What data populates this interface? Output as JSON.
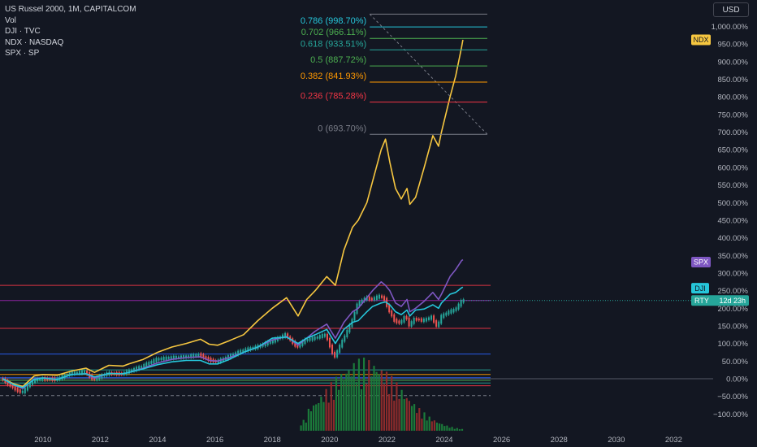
{
  "legend": {
    "main": "US Russel 2000, 1M, CAPITALCOM",
    "vol": "Vol",
    "dji": "DJI · TVC",
    "ndx": "NDX · NASDAQ",
    "spx": "SPX · SP"
  },
  "currency_button": "USD",
  "colors": {
    "background": "#131722",
    "ndx": "#f7c740",
    "spx": "#7e57c2",
    "dji": "#26c6da",
    "candle_up": "#26a69a",
    "candle_down": "#ef5350",
    "vol_up": "#1b7a3a",
    "vol_down": "#8b2b2b"
  },
  "fib_levels": [
    {
      "label": "0.786 (998.70%)",
      "color": "#26c6da"
    },
    {
      "label": "0.702 (966.11%)",
      "color": "#4caf50"
    },
    {
      "label": "0.618 (933.51%)",
      "color": "#26a69a"
    },
    {
      "label": "0.5 (887.72%)",
      "color": "#4caf50"
    },
    {
      "label": "0.382 (841.93%)",
      "color": "#ff9800"
    },
    {
      "label": "0.236 (785.28%)",
      "color": "#f23645"
    },
    {
      "label": "0 (693.70%)",
      "color": "#787b86"
    }
  ],
  "price_tags": {
    "ndx": "NDX",
    "spx": "SPX",
    "dji": "DJI",
    "rty": "RTY",
    "rty_countdown": "12d 23h"
  },
  "chart_data": {
    "type": "line",
    "scale": "percent",
    "x_ticks": [
      "2010",
      "2012",
      "2014",
      "2016",
      "2018",
      "2020",
      "2022",
      "2024",
      "2026",
      "2028",
      "2030",
      "2032"
    ],
    "y_ticks": [
      "1,000.00%",
      "950.00%",
      "900.00%",
      "850.00%",
      "800.00%",
      "750.00%",
      "700.00%",
      "650.00%",
      "600.00%",
      "550.00%",
      "500.00%",
      "450.00%",
      "400.00%",
      "350.00%",
      "300.00%",
      "250.00%",
      "200.00%",
      "150.00%",
      "100.00%",
      "50.00%",
      "0.00%",
      "−50.00%",
      "−100.00%"
    ],
    "ylim": [
      -115,
      1050
    ],
    "series": [
      {
        "name": "NDX",
        "points": [
          [
            2008.6,
            0
          ],
          [
            2009.0,
            -15
          ],
          [
            2009.3,
            -22
          ],
          [
            2009.7,
            8
          ],
          [
            2010.0,
            12
          ],
          [
            2010.5,
            10
          ],
          [
            2011.0,
            22
          ],
          [
            2011.5,
            30
          ],
          [
            2011.8,
            18
          ],
          [
            2012.3,
            38
          ],
          [
            2012.8,
            36
          ],
          [
            2013.0,
            42
          ],
          [
            2013.5,
            55
          ],
          [
            2014.0,
            75
          ],
          [
            2014.5,
            90
          ],
          [
            2015.0,
            100
          ],
          [
            2015.5,
            112
          ],
          [
            2015.8,
            98
          ],
          [
            2016.1,
            95
          ],
          [
            2016.5,
            108
          ],
          [
            2017.0,
            125
          ],
          [
            2017.5,
            165
          ],
          [
            2018.0,
            200
          ],
          [
            2018.5,
            230
          ],
          [
            2018.9,
            178
          ],
          [
            2019.2,
            225
          ],
          [
            2019.5,
            250
          ],
          [
            2019.9,
            290
          ],
          [
            2020.2,
            265
          ],
          [
            2020.5,
            365
          ],
          [
            2020.8,
            430
          ],
          [
            2021.0,
            450
          ],
          [
            2021.3,
            500
          ],
          [
            2021.5,
            560
          ],
          [
            2021.8,
            650
          ],
          [
            2021.95,
            680
          ],
          [
            2022.1,
            615
          ],
          [
            2022.3,
            540
          ],
          [
            2022.5,
            510
          ],
          [
            2022.7,
            540
          ],
          [
            2022.8,
            495
          ],
          [
            2023.0,
            515
          ],
          [
            2023.3,
            600
          ],
          [
            2023.6,
            690
          ],
          [
            2023.8,
            660
          ],
          [
            2023.9,
            700
          ],
          [
            2024.2,
            800
          ],
          [
            2024.4,
            860
          ],
          [
            2024.6,
            940
          ],
          [
            2024.65,
            962
          ]
        ]
      },
      {
        "name": "SPX",
        "points": [
          [
            2008.6,
            0
          ],
          [
            2009.0,
            -18
          ],
          [
            2009.3,
            -28
          ],
          [
            2009.7,
            0
          ],
          [
            2010.0,
            2
          ],
          [
            2010.5,
            -2
          ],
          [
            2011.0,
            12
          ],
          [
            2011.5,
            14
          ],
          [
            2011.8,
            2
          ],
          [
            2012.3,
            15
          ],
          [
            2012.8,
            14
          ],
          [
            2013.0,
            18
          ],
          [
            2013.5,
            30
          ],
          [
            2014.0,
            45
          ],
          [
            2014.5,
            55
          ],
          [
            2015.0,
            60
          ],
          [
            2015.5,
            62
          ],
          [
            2015.8,
            52
          ],
          [
            2016.1,
            50
          ],
          [
            2016.5,
            60
          ],
          [
            2017.0,
            75
          ],
          [
            2017.5,
            90
          ],
          [
            2018.0,
            110
          ],
          [
            2018.5,
            120
          ],
          [
            2018.9,
            95
          ],
          [
            2019.2,
            115
          ],
          [
            2019.5,
            135
          ],
          [
            2019.9,
            155
          ],
          [
            2020.2,
            115
          ],
          [
            2020.5,
            160
          ],
          [
            2020.8,
            190
          ],
          [
            2021.0,
            200
          ],
          [
            2021.3,
            230
          ],
          [
            2021.5,
            250
          ],
          [
            2021.8,
            275
          ],
          [
            2021.95,
            265
          ],
          [
            2022.1,
            250
          ],
          [
            2022.3,
            215
          ],
          [
            2022.5,
            205
          ],
          [
            2022.7,
            225
          ],
          [
            2022.8,
            190
          ],
          [
            2023.0,
            200
          ],
          [
            2023.3,
            220
          ],
          [
            2023.6,
            245
          ],
          [
            2023.8,
            225
          ],
          [
            2023.9,
            240
          ],
          [
            2024.2,
            290
          ],
          [
            2024.4,
            310
          ],
          [
            2024.6,
            335
          ],
          [
            2024.65,
            338
          ]
        ]
      },
      {
        "name": "DJI",
        "points": [
          [
            2008.6,
            0
          ],
          [
            2009.0,
            -18
          ],
          [
            2009.3,
            -25
          ],
          [
            2009.7,
            -2
          ],
          [
            2010.0,
            2
          ],
          [
            2010.5,
            -2
          ],
          [
            2011.0,
            12
          ],
          [
            2011.5,
            14
          ],
          [
            2011.8,
            5
          ],
          [
            2012.3,
            15
          ],
          [
            2012.8,
            14
          ],
          [
            2013.0,
            18
          ],
          [
            2013.5,
            28
          ],
          [
            2014.0,
            40
          ],
          [
            2014.5,
            48
          ],
          [
            2015.0,
            52
          ],
          [
            2015.5,
            52
          ],
          [
            2015.8,
            42
          ],
          [
            2016.1,
            42
          ],
          [
            2016.5,
            55
          ],
          [
            2017.0,
            75
          ],
          [
            2017.5,
            90
          ],
          [
            2018.0,
            115
          ],
          [
            2018.5,
            118
          ],
          [
            2018.9,
            100
          ],
          [
            2019.2,
            115
          ],
          [
            2019.5,
            125
          ],
          [
            2019.9,
            140
          ],
          [
            2020.2,
            100
          ],
          [
            2020.5,
            140
          ],
          [
            2020.8,
            160
          ],
          [
            2021.0,
            165
          ],
          [
            2021.3,
            190
          ],
          [
            2021.5,
            205
          ],
          [
            2021.8,
            215
          ],
          [
            2021.95,
            218
          ],
          [
            2022.1,
            210
          ],
          [
            2022.3,
            190
          ],
          [
            2022.5,
            182
          ],
          [
            2022.7,
            195
          ],
          [
            2022.8,
            178
          ],
          [
            2023.0,
            195
          ],
          [
            2023.3,
            198
          ],
          [
            2023.6,
            210
          ],
          [
            2023.8,
            200
          ],
          [
            2023.9,
            215
          ],
          [
            2024.2,
            240
          ],
          [
            2024.4,
            245
          ],
          [
            2024.6,
            258
          ],
          [
            2024.65,
            260
          ]
        ]
      },
      {
        "name": "RTY",
        "points": [
          [
            2008.6,
            0
          ],
          [
            2009.0,
            -25
          ],
          [
            2009.3,
            -40
          ],
          [
            2009.7,
            -5
          ],
          [
            2010.0,
            0
          ],
          [
            2010.5,
            -2
          ],
          [
            2011.0,
            15
          ],
          [
            2011.5,
            20
          ],
          [
            2011.8,
            -2
          ],
          [
            2012.3,
            15
          ],
          [
            2012.8,
            14
          ],
          [
            2013.0,
            20
          ],
          [
            2013.5,
            35
          ],
          [
            2014.0,
            55
          ],
          [
            2014.5,
            60
          ],
          [
            2015.0,
            62
          ],
          [
            2015.5,
            68
          ],
          [
            2015.8,
            55
          ],
          [
            2016.1,
            48
          ],
          [
            2016.5,
            62
          ],
          [
            2017.0,
            80
          ],
          [
            2017.5,
            90
          ],
          [
            2018.0,
            105
          ],
          [
            2018.5,
            125
          ],
          [
            2018.9,
            90
          ],
          [
            2019.2,
            110
          ],
          [
            2019.5,
            115
          ],
          [
            2019.9,
            125
          ],
          [
            2020.2,
            60
          ],
          [
            2020.5,
            110
          ],
          [
            2020.8,
            160
          ],
          [
            2021.0,
            210
          ],
          [
            2021.3,
            230
          ],
          [
            2021.5,
            225
          ],
          [
            2021.8,
            235
          ],
          [
            2021.95,
            225
          ],
          [
            2022.1,
            195
          ],
          [
            2022.3,
            165
          ],
          [
            2022.5,
            158
          ],
          [
            2022.7,
            180
          ],
          [
            2022.8,
            150
          ],
          [
            2023.0,
            170
          ],
          [
            2023.3,
            165
          ],
          [
            2023.6,
            175
          ],
          [
            2023.8,
            145
          ],
          [
            2023.9,
            175
          ],
          [
            2024.2,
            190
          ],
          [
            2024.4,
            195
          ],
          [
            2024.6,
            215
          ],
          [
            2024.65,
            222
          ]
        ]
      }
    ],
    "horizontal_lines": [
      {
        "y": 265,
        "color": "#f23645"
      },
      {
        "y": 222,
        "color": "#9c27b0"
      },
      {
        "y": 143,
        "color": "#f23645"
      },
      {
        "y": 70,
        "color": "#2962ff"
      },
      {
        "y": 25,
        "color": "#26a69a"
      },
      {
        "y": 12,
        "color": "#ff9800"
      },
      {
        "y": 3,
        "color": "#2962ff"
      },
      {
        "y": -5,
        "color": "#4caf50"
      },
      {
        "y": -12,
        "color": "#26a69a"
      },
      {
        "y": -20,
        "color": "#f23645"
      }
    ],
    "fib_retracement": {
      "x_start": 2021.4,
      "x_end": 2025.5,
      "levels_y": [
        1035,
        998.7,
        966.11,
        933.51,
        887.72,
        841.93,
        785.28,
        693.7
      ],
      "trend_from": [
        2021.4,
        1035
      ],
      "trend_to": [
        2025.5,
        693.7
      ]
    },
    "volume": {
      "x_range": [
        2019.0,
        2024.65
      ],
      "max_y_pct": 100,
      "peak_at": 2021.2
    },
    "grid": false,
    "legend_position": "top-left"
  }
}
